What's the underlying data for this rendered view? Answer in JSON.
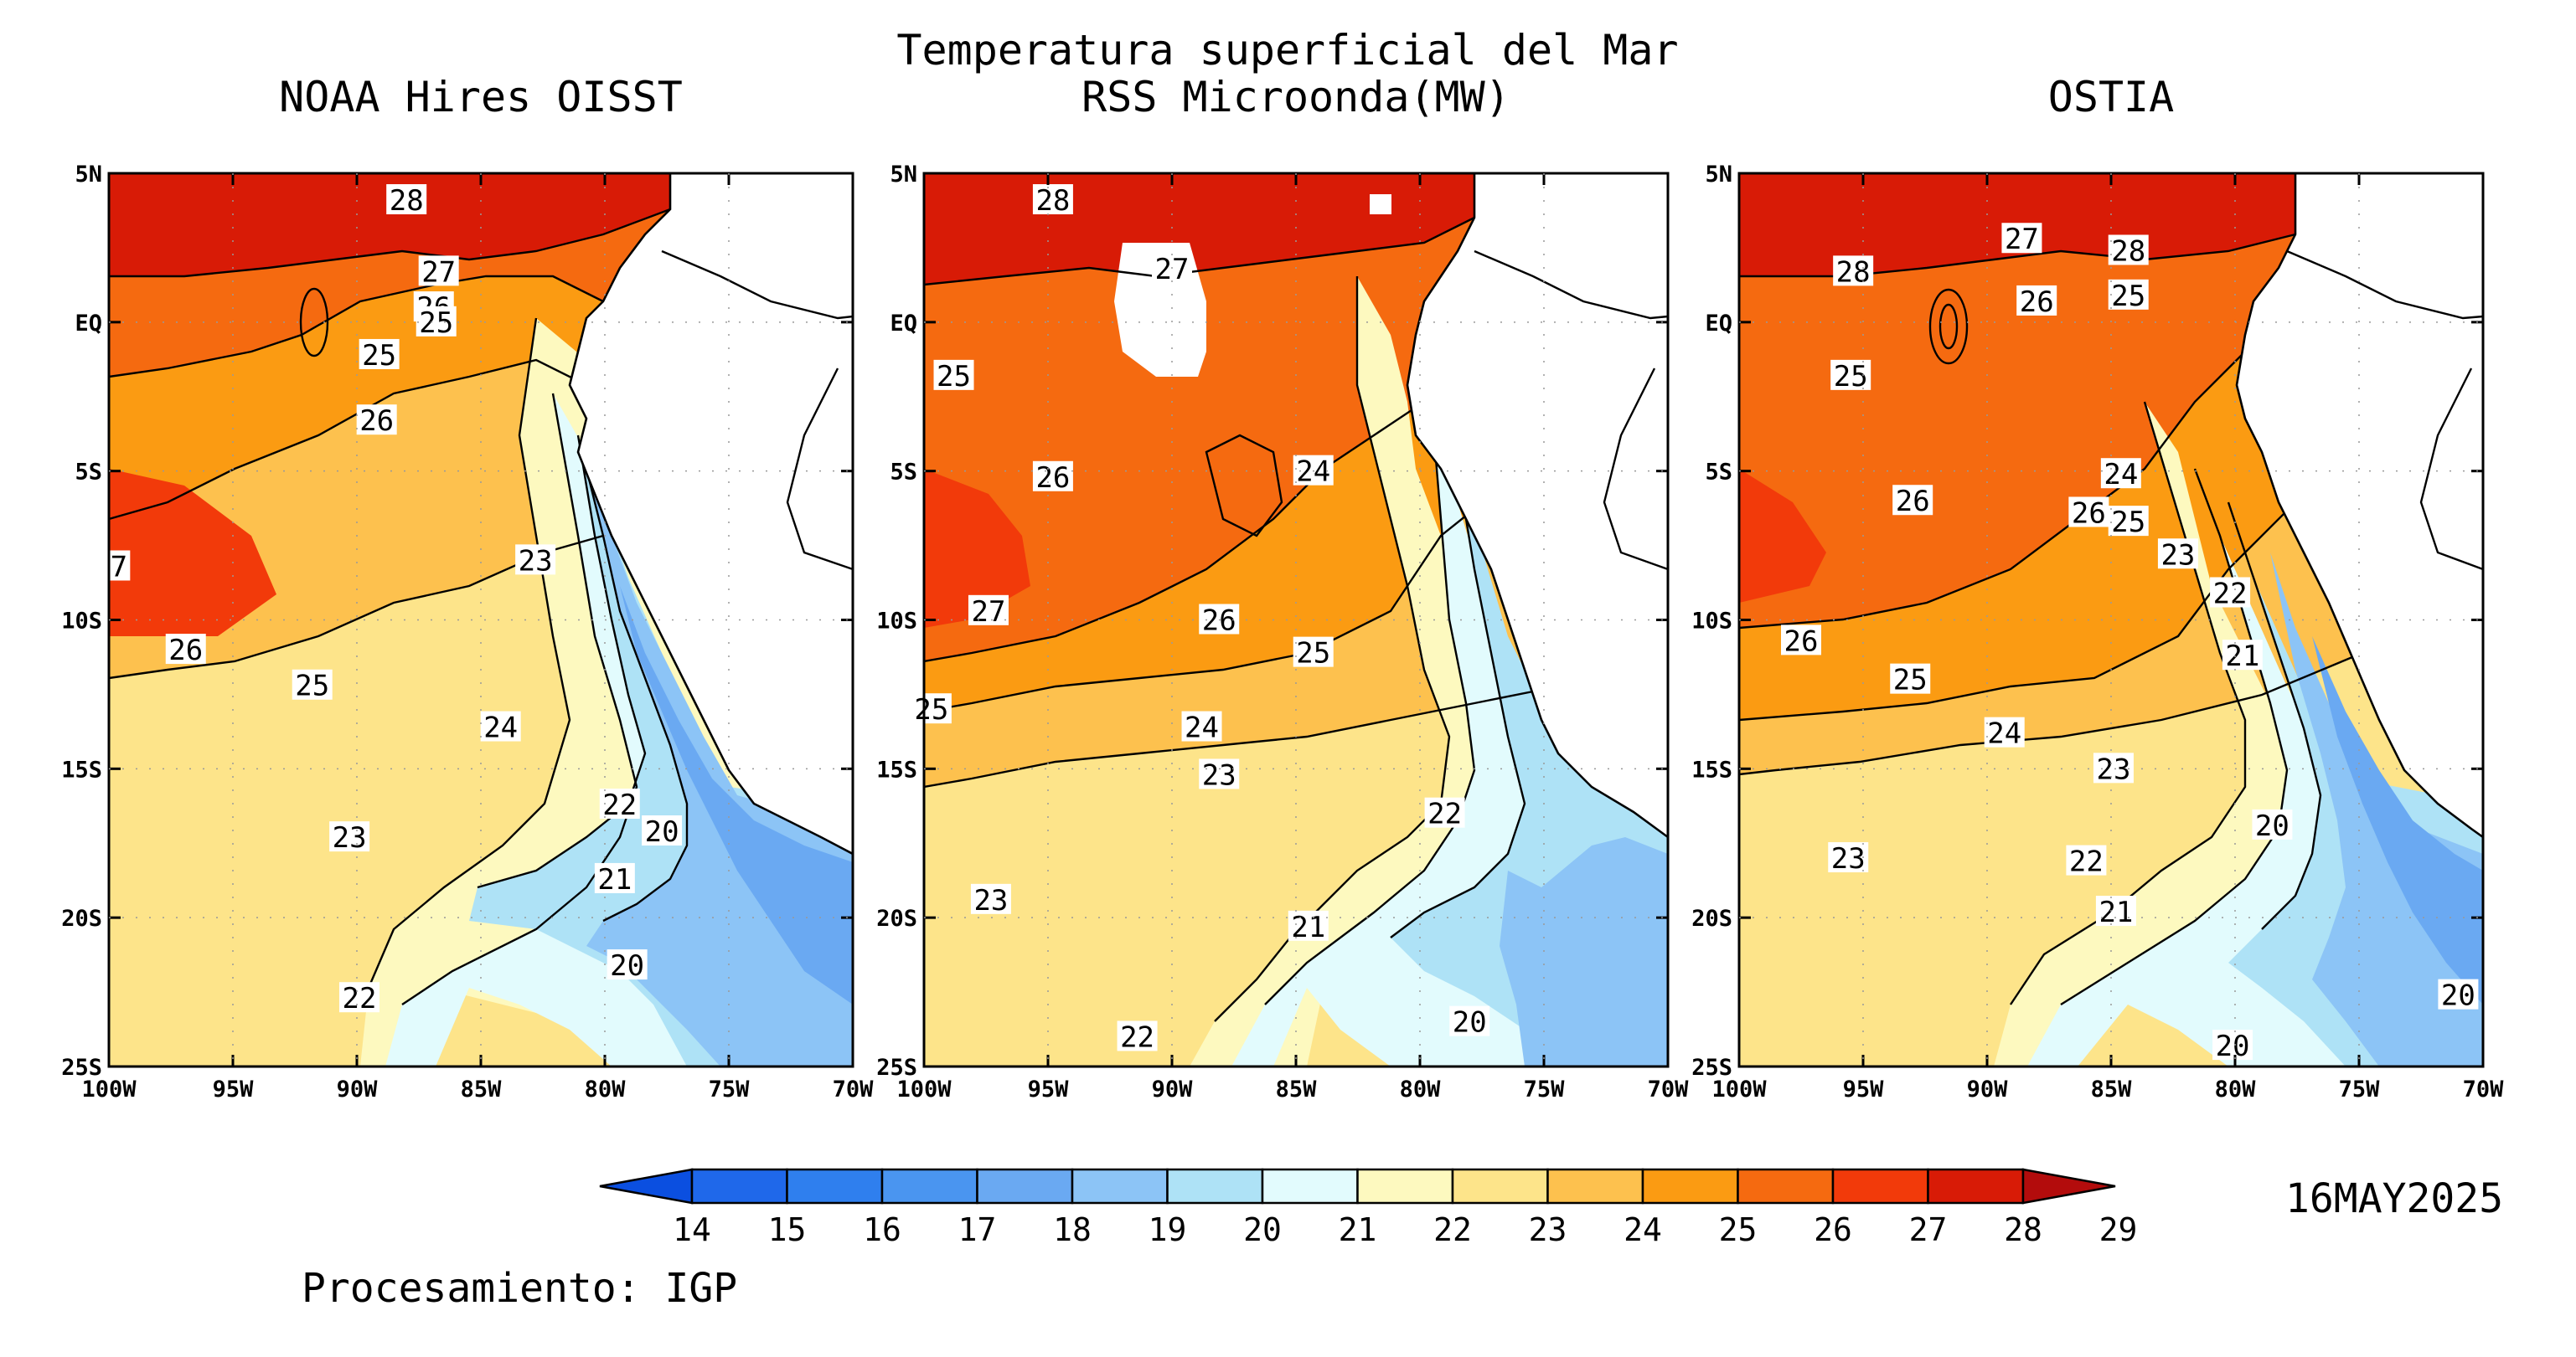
{
  "figure": {
    "title_line1": "Temperatura superficial del Mar",
    "date": "16MAY2025",
    "credit": "Procesamiento: IGP"
  },
  "panels": [
    {
      "id": "noaa",
      "title": "NOAA Hires OISST",
      "contour_labels": [
        {
          "text": "28",
          "lon": -88.0,
          "lat": 4.1
        },
        {
          "text": "27",
          "lon": -86.7,
          "lat": 1.7
        },
        {
          "text": "26",
          "lon": -86.9,
          "lat": 0.5
        },
        {
          "text": "25",
          "lon": -86.8,
          "lat": 0.0
        },
        {
          "text": "25",
          "lon": -89.1,
          "lat": -1.1
        },
        {
          "text": "26",
          "lon": -89.2,
          "lat": -3.3
        },
        {
          "text": "7",
          "lon": -99.6,
          "lat": -8.2
        },
        {
          "text": "23",
          "lon": -82.8,
          "lat": -8.0
        },
        {
          "text": "26",
          "lon": -96.9,
          "lat": -11.0
        },
        {
          "text": "25",
          "lon": -91.8,
          "lat": -12.2
        },
        {
          "text": "24",
          "lon": -84.2,
          "lat": -13.6
        },
        {
          "text": "23",
          "lon": -90.3,
          "lat": -17.3
        },
        {
          "text": "22",
          "lon": -79.4,
          "lat": -16.2
        },
        {
          "text": "20",
          "lon": -77.7,
          "lat": -17.1
        },
        {
          "text": "21",
          "lon": -79.6,
          "lat": -18.7
        },
        {
          "text": "20",
          "lon": -79.1,
          "lat": -21.6
        },
        {
          "text": "22",
          "lon": -89.9,
          "lat": -22.7
        }
      ]
    },
    {
      "id": "rss",
      "title": "RSS Microonda(MW)",
      "contour_labels": [
        {
          "text": "28",
          "lon": -94.8,
          "lat": 4.1
        },
        {
          "text": "27",
          "lon": -90.0,
          "lat": 1.8
        },
        {
          "text": "25",
          "lon": -98.8,
          "lat": -1.8
        },
        {
          "text": "26",
          "lon": -94.8,
          "lat": -5.2
        },
        {
          "text": "24",
          "lon": -84.3,
          "lat": -5.0
        },
        {
          "text": "27",
          "lon": -97.4,
          "lat": -9.7
        },
        {
          "text": "26",
          "lon": -88.1,
          "lat": -10.0
        },
        {
          "text": "25",
          "lon": -84.3,
          "lat": -11.1
        },
        {
          "text": "25",
          "lon": -99.7,
          "lat": -13.0
        },
        {
          "text": "24",
          "lon": -88.8,
          "lat": -13.6
        },
        {
          "text": "23",
          "lon": -88.1,
          "lat": -15.2
        },
        {
          "text": "22",
          "lon": -79.0,
          "lat": -16.5
        },
        {
          "text": "23",
          "lon": -97.3,
          "lat": -19.4
        },
        {
          "text": "21",
          "lon": -84.5,
          "lat": -20.3
        },
        {
          "text": "20",
          "lon": -78.0,
          "lat": -23.5
        },
        {
          "text": "22",
          "lon": -91.4,
          "lat": -24.0
        }
      ]
    },
    {
      "id": "ostia",
      "title": "OSTIA",
      "contour_labels": [
        {
          "text": "27",
          "lon": -88.6,
          "lat": 2.8
        },
        {
          "text": "28",
          "lon": -95.4,
          "lat": 1.7
        },
        {
          "text": "28",
          "lon": -84.3,
          "lat": 2.4
        },
        {
          "text": "26",
          "lon": -88.0,
          "lat": 0.7
        },
        {
          "text": "25",
          "lon": -84.3,
          "lat": 0.9
        },
        {
          "text": "25",
          "lon": -95.5,
          "lat": -1.8
        },
        {
          "text": "24",
          "lon": -84.6,
          "lat": -5.1
        },
        {
          "text": "26",
          "lon": -93.0,
          "lat": -6.0
        },
        {
          "text": "26",
          "lon": -85.9,
          "lat": -6.4
        },
        {
          "text": "25",
          "lon": -84.3,
          "lat": -6.7
        },
        {
          "text": "23",
          "lon": -82.3,
          "lat": -7.8
        },
        {
          "text": "22",
          "lon": -80.2,
          "lat": -9.1
        },
        {
          "text": "26",
          "lon": -97.5,
          "lat": -10.7
        },
        {
          "text": "21",
          "lon": -79.7,
          "lat": -11.2
        },
        {
          "text": "25",
          "lon": -93.1,
          "lat": -12.0
        },
        {
          "text": "24",
          "lon": -89.3,
          "lat": -13.8
        },
        {
          "text": "23",
          "lon": -84.9,
          "lat": -15.0
        },
        {
          "text": "20",
          "lon": -78.5,
          "lat": -16.9
        },
        {
          "text": "23",
          "lon": -95.6,
          "lat": -18.0
        },
        {
          "text": "22",
          "lon": -86.0,
          "lat": -18.1
        },
        {
          "text": "21",
          "lon": -84.8,
          "lat": -19.8
        },
        {
          "text": "20",
          "lon": -71.0,
          "lat": -22.6
        },
        {
          "text": "20",
          "lon": -80.1,
          "lat": -24.3
        }
      ]
    }
  ],
  "axes": {
    "lon_range": [
      -100,
      -70
    ],
    "lat_range": [
      -25,
      5
    ],
    "x_ticks": [
      "100W",
      "95W",
      "90W",
      "85W",
      "80W",
      "75W",
      "70W"
    ],
    "y_ticks": [
      "5N",
      "EQ",
      "5S",
      "10S",
      "15S",
      "20S",
      "25S"
    ]
  },
  "colorbar": {
    "labels": [
      "14",
      "15",
      "16",
      "17",
      "18",
      "19",
      "20",
      "21",
      "22",
      "23",
      "24",
      "25",
      "26",
      "27",
      "28",
      "29"
    ],
    "colors": [
      "#0b4fe0",
      "#1f68ea",
      "#2f7fee",
      "#4a95f0",
      "#6aa9f2",
      "#8cc4f6",
      "#aee2f6",
      "#e2fbfd",
      "#fdf9bf",
      "#fde48a",
      "#fdc14e",
      "#fb9b12",
      "#f56a10",
      "#f23a0a",
      "#d81b06",
      "#b30c0c"
    ]
  },
  "palette": {
    "land": "#ffffff",
    "missing": "#ffffff"
  }
}
